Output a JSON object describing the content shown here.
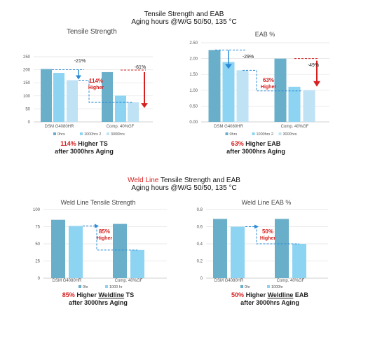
{
  "section1": {
    "title_line1": "Tensile Strength and EAB",
    "title_line2": "Aging hours @W/G 50/50, 135 °C"
  },
  "section2": {
    "title_highlight": "Weld Line",
    "title_rest": " Tensile Strength and EAB",
    "title_line2": "Aging hours @W/G 50/50, 135 °C"
  },
  "captions": {
    "c1": {
      "pct": "114%",
      "text1": " Higher TS",
      "text2": "after 3000hrs Aging"
    },
    "c2": {
      "pct": "63%",
      "text1": " Higher EAB",
      "text2": "after 3000hrs Aging"
    },
    "c3": {
      "pct": "85%",
      "text1": " Higher ",
      "ul": "Weldline",
      "text1b": " TS",
      "text2": "after 3000hrs Aging"
    },
    "c4": {
      "pct": "50%",
      "text1": " Higher ",
      "ul": "Weldline",
      "text1b": " EAB",
      "text2": "after 3000hrs Aging"
    }
  },
  "colors": {
    "series_0hrs": "#6aafc9",
    "series_1000hrs": "#8dd3f2",
    "series_3000hrs": "#bfe2f4",
    "arrow_blue": "#2b8ad6",
    "arrow_red": "#d62020"
  },
  "chart_data": [
    {
      "id": "tensile",
      "type": "bar",
      "title": "Tensile Strength",
      "categories": [
        "DSM G4080HR",
        "Comp. 40%GF"
      ],
      "series": [
        {
          "name": "0hrs",
          "values": [
            203,
            191
          ]
        },
        {
          "name": "1000hrs 2",
          "values": [
            188,
            101
          ]
        },
        {
          "name": "3000hrs",
          "values": [
            160,
            75
          ]
        }
      ],
      "ylim": [
        0,
        250
      ],
      "yticks": [
        "0",
        "50",
        "100",
        "150",
        "200",
        "250"
      ],
      "grid": true,
      "legend": "bottom",
      "annotations": {
        "drop_a": "-21%",
        "drop_b": "-61%",
        "higher_pct": "114%",
        "higher_word": "Higher"
      }
    },
    {
      "id": "eab",
      "type": "bar",
      "title": "EAB %",
      "categories": [
        "DSM G4080HR",
        "Comp. 40%GF"
      ],
      "series": [
        {
          "name": "0hrs",
          "values": [
            2.27,
            2.0
          ]
        },
        {
          "name": "1000hrs 2",
          "values": [
            1.89,
            1.11
          ]
        },
        {
          "name": "3000hrs",
          "values": [
            1.63,
            1.0
          ]
        }
      ],
      "ylim": [
        0,
        2.5
      ],
      "yticks": [
        "0.00",
        "0.50",
        "1.00",
        "1.50",
        "2.00",
        "2.50"
      ],
      "grid": true,
      "legend": "bottom",
      "annotations": {
        "drop_a": "-29%",
        "drop_b": "-49%",
        "higher_pct": "63%",
        "higher_word": "Higher"
      }
    },
    {
      "id": "weld_tensile",
      "type": "bar",
      "title": "Weld Line Tensile Strength",
      "categories": [
        "DSM G4080HR",
        "Comp. 40%GF"
      ],
      "series": [
        {
          "name": "0hr",
          "values": [
            85,
            79
          ]
        },
        {
          "name": "1000 hr",
          "values": [
            76,
            41
          ]
        }
      ],
      "ylim": [
        0,
        100
      ],
      "yticks": [
        "0",
        "25",
        "50",
        "75",
        "100"
      ],
      "grid": true,
      "legend": "bottom",
      "annotations": {
        "higher_pct": "85%",
        "higher_word": "Higher"
      }
    },
    {
      "id": "weld_eab",
      "type": "bar",
      "title": "Weld Line EAB %",
      "categories": [
        "DSM G4080HR",
        "Comp. 40%GF"
      ],
      "series": [
        {
          "name": "0hr",
          "values": [
            0.69,
            0.69
          ]
        },
        {
          "name": "1000hr",
          "values": [
            0.6,
            0.4
          ]
        }
      ],
      "ylim": [
        0,
        0.8
      ],
      "yticks": [
        "0",
        "0.2",
        "0.4",
        "0.6",
        "0.8"
      ],
      "grid": true,
      "legend": "bottom",
      "annotations": {
        "higher_pct": "50%",
        "higher_word": "Higher"
      }
    }
  ]
}
